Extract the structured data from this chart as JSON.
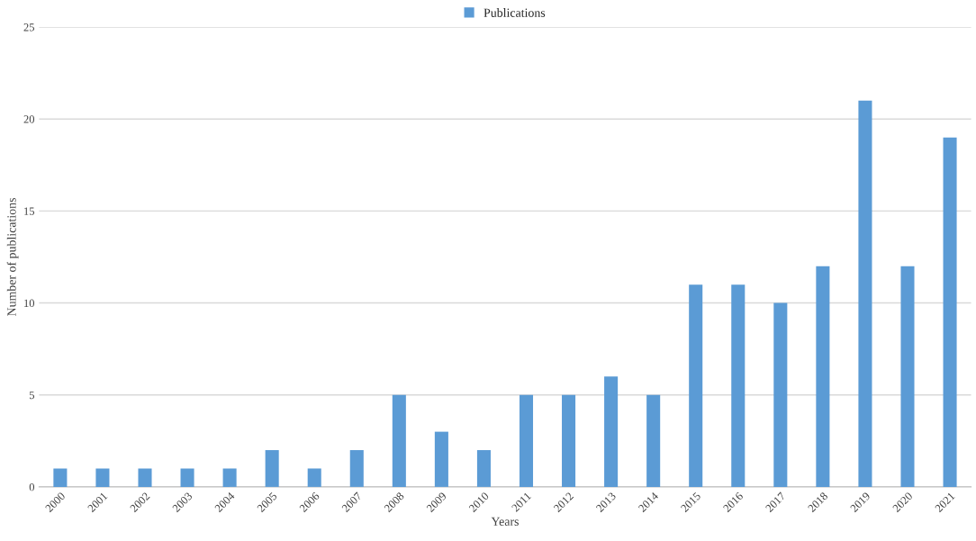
{
  "chart_data": {
    "type": "bar",
    "xlabel": "Years",
    "ylabel": "Number of publications",
    "categories": [
      "2000",
      "2001",
      "2002",
      "2003",
      "2004",
      "2005",
      "2006",
      "2007",
      "2008",
      "2009",
      "2010",
      "2011",
      "2012",
      "2013",
      "2014",
      "2015",
      "2016",
      "2017",
      "2018",
      "2019",
      "2020",
      "2021"
    ],
    "series": [
      {
        "name": "Publications",
        "color": "#5b9bd5",
        "values": [
          1,
          1,
          1,
          1,
          1,
          2,
          1,
          2,
          5,
          3,
          2,
          5,
          5,
          6,
          5,
          11,
          11,
          10,
          12,
          21,
          12,
          19
        ]
      }
    ],
    "ylim": [
      0,
      25
    ],
    "yticks": [
      0,
      5,
      10,
      15,
      20,
      25
    ],
    "grid": "y",
    "legend": "top"
  }
}
